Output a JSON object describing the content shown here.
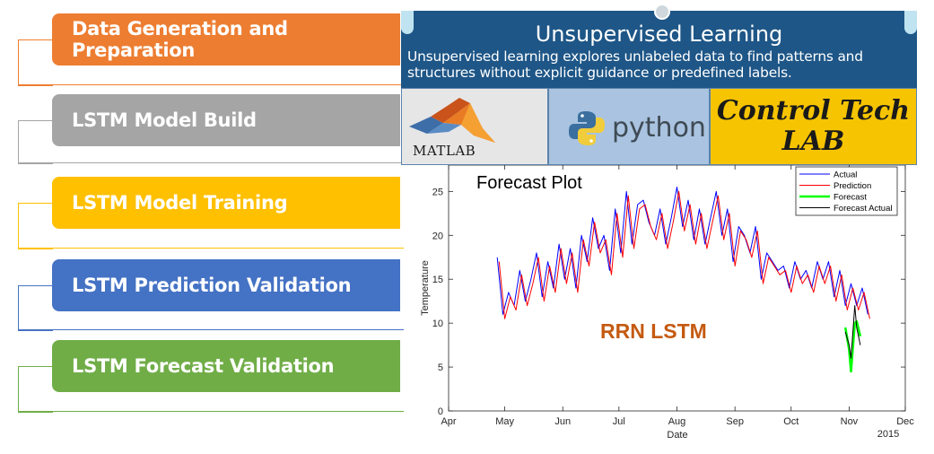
{
  "steps": [
    {
      "label": "Data Generation and Preparation",
      "color": "#ed7d31"
    },
    {
      "label": "LSTM Model Build",
      "color": "#a5a5a5"
    },
    {
      "label": "LSTM Model Training",
      "color": "#ffc000"
    },
    {
      "label": "LSTM Prediction Validation",
      "color": "#4472c4"
    },
    {
      "label": "LSTM Forecast Validation",
      "color": "#70ad47"
    }
  ],
  "banner": {
    "title": "Unsupervised Learning",
    "description": "Unsupervised learning explores unlabeled data to find patterns and structures without explicit guidance or predefined labels."
  },
  "logos": {
    "matlab": "MATLAB",
    "python": "python",
    "control_tech_line1": "Control Tech",
    "control_tech_line2": "LAB"
  },
  "chart_overlay": "RRN LSTM",
  "chart_data": {
    "type": "line",
    "title": "Forecast Plot",
    "xlabel": "Date",
    "ylabel": "Temperature",
    "x_ticks": [
      "Apr",
      "May",
      "Jun",
      "Jul",
      "Aug",
      "Sep",
      "Oct",
      "Nov",
      "Dec"
    ],
    "x_year_label": "2015",
    "xlim": [
      "2015-04-01",
      "2015-12-01"
    ],
    "ylim": [
      0,
      28
    ],
    "y_ticks": [
      0,
      5,
      10,
      15,
      20,
      25
    ],
    "legend_position": "top-right",
    "series": [
      {
        "name": "Actual",
        "color": "#0000ff",
        "x_start": "2015-04-27",
        "x_step_days": 3,
        "values": [
          17.5,
          11,
          13.5,
          12,
          16,
          12.5,
          15,
          18,
          13,
          17,
          14,
          19,
          15,
          18.5,
          14,
          20,
          17,
          22,
          18.5,
          20,
          16,
          23,
          18,
          25,
          19,
          23.5,
          24,
          21.5,
          20,
          23,
          19,
          22,
          25.5,
          21,
          24,
          19.5,
          23,
          19,
          22,
          25,
          20,
          23,
          17,
          21,
          20,
          18,
          21,
          15,
          18,
          17,
          16,
          16.5,
          14,
          17,
          15,
          16,
          14,
          17,
          15,
          17,
          13,
          16,
          12,
          14.5,
          12,
          14,
          11
        ]
      },
      {
        "name": "Prediction",
        "color": "#ff0000",
        "x_start": "2015-04-28",
        "x_step_days": 3,
        "values": [
          17,
          10.5,
          13,
          11.5,
          15.5,
          12,
          14.5,
          17.5,
          12.5,
          16.5,
          13.5,
          18.5,
          14.5,
          18,
          13.5,
          19.5,
          16.5,
          21.5,
          18,
          19.5,
          15.5,
          22.5,
          17.5,
          24.5,
          18.5,
          23,
          23.5,
          21,
          19.5,
          22.5,
          18.5,
          21.5,
          25,
          20.5,
          23.5,
          19,
          22.5,
          18.5,
          21.5,
          24.5,
          19.5,
          22.5,
          16.5,
          20.5,
          19.5,
          17.5,
          20.5,
          14.5,
          17.5,
          16.5,
          15.5,
          16,
          13.5,
          16.5,
          14.5,
          15.5,
          13.5,
          16.5,
          14.5,
          16.5,
          12.5,
          15.5,
          11.5,
          14,
          11.5,
          13.5,
          10.5
        ]
      },
      {
        "name": "Forecast",
        "color": "#00ff00",
        "x": [
          "2015-10-30",
          "2015-11-01",
          "2015-11-02",
          "2015-11-04",
          "2015-11-05",
          "2015-11-07"
        ],
        "values": [
          9.5,
          7,
          4.5,
          10,
          10.2,
          8.5
        ]
      },
      {
        "name": "Forecast Actual",
        "color": "#000000",
        "x": [
          "2015-10-30",
          "2015-11-01",
          "2015-11-02",
          "2015-11-04",
          "2015-11-05",
          "2015-11-07"
        ],
        "values": [
          9,
          7.5,
          6,
          12,
          9.5,
          7.5
        ]
      }
    ]
  }
}
